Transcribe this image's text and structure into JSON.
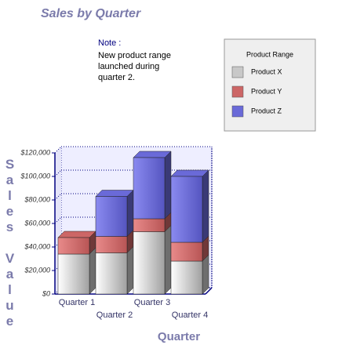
{
  "chart_data": {
    "type": "bar",
    "stacked": true,
    "title": "Sales by Quarter",
    "x_label": "Quarter",
    "y_label": "Sales Value",
    "note_title": "Note :",
    "note": [
      "New product range",
      "launched during",
      "quarter 2."
    ],
    "legend_title": "Product Range",
    "categories": [
      "Quarter 1",
      "Quarter 2",
      "Quarter 3",
      "Quarter 4"
    ],
    "series": [
      {
        "name": "Product X",
        "color": "#c8c8c8",
        "values": [
          34000,
          35000,
          53000,
          28000
        ]
      },
      {
        "name": "Product Y",
        "color": "#cc6666",
        "values": [
          14000,
          14000,
          11000,
          16000
        ]
      },
      {
        "name": "Product Z",
        "color": "#6a6ad8",
        "values": [
          0,
          34000,
          52000,
          56000
        ]
      }
    ],
    "ylim": [
      0,
      120000
    ],
    "yticks": [
      {
        "value": 0,
        "label": "$0"
      },
      {
        "value": 20000,
        "label": "$20,000"
      },
      {
        "value": 40000,
        "label": "$40,000"
      },
      {
        "value": 60000,
        "label": "$60,000"
      },
      {
        "value": 80000,
        "label": "$80,000"
      },
      {
        "value": 100000,
        "label": "$100,000"
      },
      {
        "value": 120000,
        "label": "$120,000"
      }
    ],
    "grid": true
  }
}
